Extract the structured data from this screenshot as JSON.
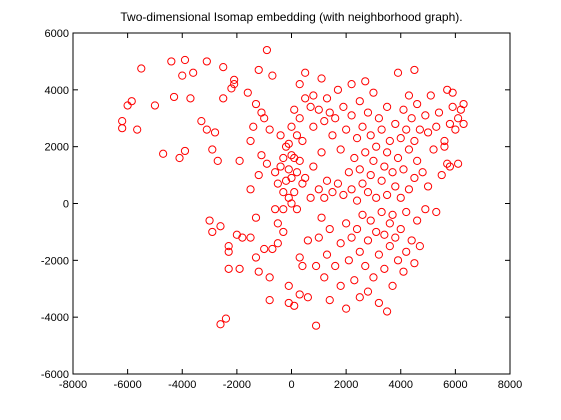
{
  "chart_data": {
    "type": "scatter",
    "title": "Two-dimensional Isomap embedding (with neighborhood graph).",
    "xlabel": "",
    "ylabel": "",
    "xlim": [
      -8000,
      8000
    ],
    "ylim": [
      -6000,
      6000
    ],
    "xticks": [
      -8000,
      -6000,
      -4000,
      -2000,
      0,
      2000,
      4000,
      6000,
      8000
    ],
    "yticks": [
      -6000,
      -4000,
      -2000,
      0,
      2000,
      4000,
      6000
    ],
    "xtick_labels": [
      "-8000",
      "-6000",
      "-4000",
      "-2000",
      "0",
      "2000",
      "4000",
      "6000",
      "8000"
    ],
    "ytick_labels": [
      "-6000",
      "-4000",
      "-2000",
      "0",
      "2000",
      "4000",
      "6000"
    ],
    "grid": false,
    "marker": "circle",
    "color": "#ff0000",
    "series": [
      {
        "points": [
          [
            -6200,
            2900
          ],
          [
            -6200,
            2650
          ],
          [
            -6000,
            3450
          ],
          [
            -5850,
            3600
          ],
          [
            -5650,
            2600
          ],
          [
            -5500,
            4750
          ],
          [
            -5000,
            3450
          ],
          [
            -4700,
            1750
          ],
          [
            -4400,
            5000
          ],
          [
            -4300,
            3750
          ],
          [
            -4100,
            1600
          ],
          [
            -4000,
            4500
          ],
          [
            -3900,
            5050
          ],
          [
            -3700,
            3700
          ],
          [
            -3900,
            1850
          ],
          [
            -3600,
            4600
          ],
          [
            -3300,
            2900
          ],
          [
            -3100,
            5000
          ],
          [
            -3100,
            2600
          ],
          [
            -3000,
            -600
          ],
          [
            -2900,
            1900
          ],
          [
            -2900,
            -1000
          ],
          [
            -2800,
            2500
          ],
          [
            -2700,
            1500
          ],
          [
            -2600,
            -800
          ],
          [
            -2600,
            -4250
          ],
          [
            -2400,
            -4050
          ],
          [
            -2500,
            3700
          ],
          [
            -2500,
            4800
          ],
          [
            -2300,
            -1500
          ],
          [
            -2300,
            -1700
          ],
          [
            -2300,
            -2300
          ],
          [
            -2200,
            4050
          ],
          [
            -2100,
            4200
          ],
          [
            -2100,
            4350
          ],
          [
            -2000,
            -1100
          ],
          [
            -1900,
            -2300
          ],
          [
            -1900,
            1500
          ],
          [
            -1800,
            -1200
          ],
          [
            -1600,
            3900
          ],
          [
            -1500,
            2200
          ],
          [
            -1500,
            500
          ],
          [
            -1500,
            -1200
          ],
          [
            -1400,
            2700
          ],
          [
            -1300,
            3500
          ],
          [
            -1200,
            4700
          ],
          [
            -1300,
            -500
          ],
          [
            -1300,
            -1900
          ],
          [
            -1200,
            1000
          ],
          [
            -1200,
            -2400
          ],
          [
            -1100,
            1700
          ],
          [
            -1100,
            3200
          ],
          [
            -1000,
            3000
          ],
          [
            -1000,
            -1600
          ],
          [
            -900,
            5400
          ],
          [
            -900,
            1400
          ],
          [
            -800,
            2600
          ],
          [
            -800,
            -2600
          ],
          [
            -800,
            -3400
          ],
          [
            -700,
            4500
          ],
          [
            -700,
            -1600
          ],
          [
            -600,
            1100
          ],
          [
            -600,
            -200
          ],
          [
            -500,
            700
          ],
          [
            -500,
            -700
          ],
          [
            -500,
            -1400
          ],
          [
            -400,
            2400
          ],
          [
            -400,
            1300
          ],
          [
            -300,
            1600
          ],
          [
            -300,
            400
          ],
          [
            -300,
            -200
          ],
          [
            -300,
            -1000
          ],
          [
            -200,
            2000
          ],
          [
            -200,
            800
          ],
          [
            -100,
            2100
          ],
          [
            -100,
            1200
          ],
          [
            -100,
            200
          ],
          [
            -100,
            -2900
          ],
          [
            -100,
            -3500
          ],
          [
            0,
            2700
          ],
          [
            0,
            1700
          ],
          [
            0,
            900
          ],
          [
            0,
            0
          ],
          [
            100,
            3300
          ],
          [
            100,
            1600
          ],
          [
            100,
            400
          ],
          [
            100,
            -3600
          ],
          [
            200,
            2400
          ],
          [
            200,
            1100
          ],
          [
            200,
            -200
          ],
          [
            300,
            4200
          ],
          [
            300,
            3000
          ],
          [
            300,
            1500
          ],
          [
            300,
            -1900
          ],
          [
            300,
            -3200
          ],
          [
            400,
            2200
          ],
          [
            400,
            700
          ],
          [
            400,
            -2200
          ],
          [
            500,
            4600
          ],
          [
            500,
            3700
          ],
          [
            500,
            900
          ],
          [
            600,
            -1300
          ],
          [
            600,
            -3300
          ],
          [
            700,
            3400
          ],
          [
            700,
            200
          ],
          [
            800,
            3800
          ],
          [
            800,
            2700
          ],
          [
            800,
            1300
          ],
          [
            900,
            -2200
          ],
          [
            900,
            -4300
          ],
          [
            1000,
            3300
          ],
          [
            1000,
            500
          ],
          [
            1000,
            -1200
          ],
          [
            1100,
            4400
          ],
          [
            1100,
            1800
          ],
          [
            1100,
            -500
          ],
          [
            1200,
            2900
          ],
          [
            1200,
            200
          ],
          [
            1200,
            -2600
          ],
          [
            1300,
            3700
          ],
          [
            1300,
            800
          ],
          [
            1300,
            -1800
          ],
          [
            1400,
            3200
          ],
          [
            1400,
            -900
          ],
          [
            1400,
            -3400
          ],
          [
            1500,
            2400
          ],
          [
            1500,
            400
          ],
          [
            1600,
            3000
          ],
          [
            1600,
            -2200
          ],
          [
            1700,
            4000
          ],
          [
            1700,
            700
          ],
          [
            1800,
            1900
          ],
          [
            1800,
            -1400
          ],
          [
            1800,
            -2900
          ],
          [
            1900,
            3400
          ],
          [
            1900,
            300
          ],
          [
            2000,
            2600
          ],
          [
            2000,
            -700
          ],
          [
            2000,
            -3700
          ],
          [
            2100,
            1100
          ],
          [
            2100,
            -2000
          ],
          [
            2200,
            4200
          ],
          [
            2200,
            3100
          ],
          [
            2200,
            500
          ],
          [
            2200,
            -1200
          ],
          [
            2300,
            1600
          ],
          [
            2300,
            -2700
          ],
          [
            2400,
            2300
          ],
          [
            2400,
            100
          ],
          [
            2400,
            -900
          ],
          [
            2500,
            3600
          ],
          [
            2500,
            1200
          ],
          [
            2500,
            -1700
          ],
          [
            2500,
            -3300
          ],
          [
            2600,
            2700
          ],
          [
            2600,
            700
          ],
          [
            2600,
            -400
          ],
          [
            2700,
            4300
          ],
          [
            2700,
            1800
          ],
          [
            2700,
            -2200
          ],
          [
            2800,
            3200
          ],
          [
            2800,
            400
          ],
          [
            2800,
            -1300
          ],
          [
            2800,
            -3100
          ],
          [
            2900,
            2400
          ],
          [
            2900,
            1000
          ],
          [
            2900,
            -600
          ],
          [
            3000,
            3900
          ],
          [
            3000,
            1500
          ],
          [
            3000,
            -2600
          ],
          [
            3100,
            2000
          ],
          [
            3100,
            200
          ],
          [
            3100,
            -1000
          ],
          [
            3200,
            3000
          ],
          [
            3200,
            -1800
          ],
          [
            3200,
            -3500
          ],
          [
            3300,
            2600
          ],
          [
            3300,
            800
          ],
          [
            3300,
            -300
          ],
          [
            3400,
            1300
          ],
          [
            3400,
            -1100
          ],
          [
            3400,
            -2300
          ],
          [
            3500,
            3400
          ],
          [
            3500,
            1800
          ],
          [
            3500,
            300
          ],
          [
            3500,
            -3800
          ],
          [
            3600,
            2200
          ],
          [
            3600,
            -700
          ],
          [
            3600,
            -1500
          ],
          [
            3700,
            1100
          ],
          [
            3700,
            -400
          ],
          [
            3700,
            -2900
          ],
          [
            3800,
            2800
          ],
          [
            3800,
            600
          ],
          [
            3800,
            -1200
          ],
          [
            3900,
            4600
          ],
          [
            3900,
            1600
          ],
          [
            3900,
            -2000
          ],
          [
            4000,
            2300
          ],
          [
            4000,
            200
          ],
          [
            4000,
            -900
          ],
          [
            4100,
            3300
          ],
          [
            4100,
            1200
          ],
          [
            4100,
            -2400
          ],
          [
            4200,
            2600
          ],
          [
            4200,
            -300
          ],
          [
            4200,
            -1700
          ],
          [
            4300,
            3800
          ],
          [
            4300,
            1900
          ],
          [
            4300,
            500
          ],
          [
            4400,
            3000
          ],
          [
            4400,
            -1300
          ],
          [
            4500,
            4700
          ],
          [
            4500,
            2200
          ],
          [
            4500,
            900
          ],
          [
            4500,
            -2100
          ],
          [
            4600,
            3500
          ],
          [
            4600,
            1500
          ],
          [
            4600,
            -600
          ],
          [
            4700,
            2600
          ],
          [
            4700,
            -1500
          ],
          [
            4800,
            1100
          ],
          [
            4900,
            3100
          ],
          [
            4900,
            -200
          ],
          [
            5000,
            2500
          ],
          [
            5000,
            600
          ],
          [
            5100,
            3800
          ],
          [
            5200,
            1900
          ],
          [
            5300,
            2700
          ],
          [
            5300,
            -300
          ],
          [
            5400,
            3200
          ],
          [
            5500,
            1000
          ],
          [
            5600,
            2200
          ],
          [
            5700,
            4000
          ],
          [
            5700,
            1400
          ],
          [
            5800,
            2800
          ],
          [
            5900,
            3400
          ],
          [
            5900,
            3900
          ],
          [
            6000,
            2600
          ],
          [
            6100,
            3000
          ],
          [
            6200,
            3300
          ],
          [
            6300,
            3500
          ],
          [
            6300,
            2800
          ],
          [
            6100,
            1400
          ],
          [
            5800,
            1300
          ],
          [
            5600,
            2000
          ]
        ]
      }
    ]
  }
}
